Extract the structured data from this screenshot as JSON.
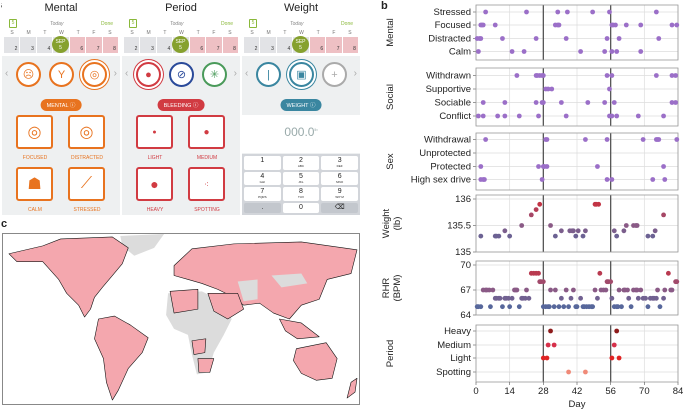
{
  "panel_labels": {
    "a": "a",
    "b": "b",
    "c": "c"
  },
  "calendar": {
    "icon_day": "5",
    "today": "Today",
    "done": "Done",
    "weekdays": [
      "S",
      "M",
      "T",
      "W",
      "T",
      "F",
      "S"
    ],
    "dates": [
      "2",
      "3",
      "4",
      "5",
      "6",
      "7",
      "8"
    ],
    "month": "SEP"
  },
  "phones": [
    {
      "title": "Mental",
      "accent": "#e8731f",
      "pill": "MENTAL",
      "icons": [
        "neutral-face",
        "person-arms-up",
        "target"
      ],
      "tiles": [
        {
          "label": "FOCUSED",
          "icon": "target-arrow"
        },
        {
          "label": "DISTRACTED",
          "icon": "target-missed"
        },
        {
          "label": "CALM",
          "icon": "sleeping-cat"
        },
        {
          "label": "STRESSED",
          "icon": "dynamite"
        }
      ]
    },
    {
      "title": "Period",
      "accent": "#d13b42",
      "pill": "BLEEDING",
      "icons": [
        "drop",
        "compass",
        "sparkle"
      ],
      "tiles": [
        {
          "label": "LIGHT",
          "icon": "small-drop"
        },
        {
          "label": "MEDIUM",
          "icon": "medium-drop"
        },
        {
          "label": "HEAVY",
          "icon": "large-drop"
        },
        {
          "label": "SPOTTING",
          "icon": "spots"
        }
      ]
    },
    {
      "title": "Weight",
      "accent": "#3a86a0",
      "pill": "WEIGHT",
      "icons": [
        "thermometer",
        "scale",
        "plus"
      ],
      "value": "000.0",
      "unit": "lb",
      "keys": [
        [
          "1",
          ""
        ],
        [
          "2",
          "ABC"
        ],
        [
          "3",
          "DEF"
        ],
        [
          "4",
          "GHI"
        ],
        [
          "5",
          "JKL"
        ],
        [
          "6",
          "MNO"
        ],
        [
          "7",
          "PQRS"
        ],
        [
          "8",
          "TUV"
        ],
        [
          "9",
          "WXYZ"
        ],
        [
          ".",
          ""
        ],
        [
          "0",
          ""
        ],
        [
          "⌫",
          ""
        ]
      ]
    }
  ],
  "chart_data": {
    "type": "scatter",
    "xlabel": "Day",
    "xlim": [
      0,
      84
    ],
    "xticks": [
      0,
      14,
      28,
      42,
      56,
      70,
      84
    ],
    "cycle_lines": [
      28,
      56
    ],
    "panels": [
      {
        "group": "Mental",
        "kind": "categorical",
        "categories": [
          "Stressed",
          "Focused",
          "Distracted",
          "Calm"
        ],
        "color": "#9b6fc8",
        "points": {
          "Stressed": [
            4,
            21,
            34,
            38,
            48.5,
            55.5,
            75
          ],
          "Focused": [
            2,
            2.5,
            3,
            8,
            33,
            34,
            34.5,
            56.5,
            57,
            58,
            62.5,
            68.5,
            81.5,
            83.5
          ],
          "Distracted": [
            0.5,
            1.5,
            2,
            11,
            25,
            37.5,
            54.5,
            59.5,
            76
          ],
          "Calm": [
            1,
            15,
            20,
            43.5,
            53.5,
            56.5,
            58.5,
            68.5
          ]
        }
      },
      {
        "group": "Social",
        "kind": "categorical",
        "categories": [
          "Withdrawn",
          "Supportive",
          "Sociable",
          "Conflict"
        ],
        "color": "#9b6fc8",
        "points": {
          "Withdrawn": [
            17,
            25,
            25.5,
            26.5,
            27.5,
            28,
            54.5,
            56.5,
            75,
            81.5,
            83
          ],
          "Supportive": [
            29,
            30,
            31.5,
            55.5
          ],
          "Sociable": [
            3,
            12,
            25,
            27.5,
            28,
            35.5,
            46.5,
            53.5,
            57.5,
            81.5,
            83
          ],
          "Conflict": [
            1,
            3,
            9,
            12,
            18,
            26,
            37.5,
            55.5,
            56.5,
            58.5,
            67.5,
            78
          ]
        }
      },
      {
        "group": "Sex",
        "kind": "categorical",
        "categories": [
          "Withdrawal",
          "Unprotected",
          "Protected",
          "High sex drive"
        ],
        "color": "#9b6fc8",
        "points": {
          "Withdrawal": [
            4,
            29,
            29.5,
            45.5,
            54.5,
            69.5,
            75,
            75.5,
            76,
            83.5
          ],
          "Unprotected": [],
          "Protected": [
            2,
            26,
            28,
            28.5,
            29.5,
            50.5,
            78
          ],
          "High sex drive": [
            2,
            3,
            3.5,
            27.5,
            54.5,
            56.5,
            73.5,
            78.5
          ]
        }
      },
      {
        "group": "Weight (lb)",
        "kind": "numeric",
        "ylim": [
          135,
          136
        ],
        "yticks": [
          135,
          135.5,
          136
        ],
        "points": [
          [
            2,
            135.3
          ],
          [
            8,
            135.3
          ],
          [
            8.5,
            135.3
          ],
          [
            9.5,
            135.3
          ],
          [
            12,
            135.4
          ],
          [
            14,
            135.3
          ],
          [
            19,
            135.5
          ],
          [
            23,
            135.7
          ],
          [
            25,
            135.8
          ],
          [
            26.5,
            135.9
          ],
          [
            31,
            135.5
          ],
          [
            33,
            135.3
          ],
          [
            35.5,
            135.4
          ],
          [
            39,
            135.4
          ],
          [
            40,
            135.4
          ],
          [
            40.5,
            135.4
          ],
          [
            41.5,
            135.3
          ],
          [
            42.5,
            135.4
          ],
          [
            44.5,
            135.3
          ],
          [
            45.5,
            135.4
          ],
          [
            49.5,
            135.9
          ],
          [
            50,
            135.9
          ],
          [
            51,
            135.9
          ],
          [
            57.5,
            135.4
          ],
          [
            58.5,
            135.3
          ],
          [
            61.5,
            135.4
          ],
          [
            62.5,
            135.5
          ],
          [
            65.5,
            135.5
          ],
          [
            66.5,
            135.5
          ],
          [
            67,
            135.5
          ],
          [
            71.5,
            135.3
          ],
          [
            73.5,
            135.3
          ],
          [
            74.5,
            135.4
          ],
          [
            78,
            135.7
          ]
        ]
      },
      {
        "group": "RHR (BPM)",
        "kind": "numeric",
        "ylim": [
          64,
          70
        ],
        "yticks": [
          64,
          67,
          70
        ],
        "points": [
          [
            23,
            69
          ],
          [
            24,
            69
          ],
          [
            25,
            69
          ],
          [
            26,
            69
          ],
          [
            51.5,
            69
          ],
          [
            80,
            69
          ],
          [
            26.5,
            68
          ],
          [
            27,
            68
          ],
          [
            28,
            68
          ],
          [
            54.5,
            68
          ],
          [
            55,
            68
          ],
          [
            56,
            68
          ],
          [
            83,
            68
          ],
          [
            83.5,
            68
          ],
          [
            3,
            67
          ],
          [
            4,
            67
          ],
          [
            4.5,
            67
          ],
          [
            5.5,
            67
          ],
          [
            7,
            67
          ],
          [
            16,
            67
          ],
          [
            16.5,
            67
          ],
          [
            17,
            67
          ],
          [
            21,
            67
          ],
          [
            31,
            67
          ],
          [
            33,
            67
          ],
          [
            37.5,
            67
          ],
          [
            40.5,
            67
          ],
          [
            49.5,
            67
          ],
          [
            52,
            67
          ],
          [
            53,
            67
          ],
          [
            54,
            67
          ],
          [
            59.5,
            67
          ],
          [
            61.5,
            67
          ],
          [
            62,
            67
          ],
          [
            63,
            67
          ],
          [
            65.5,
            67
          ],
          [
            66.5,
            67
          ],
          [
            67,
            67
          ],
          [
            68.5,
            67
          ],
          [
            75.5,
            67
          ],
          [
            78.5,
            67
          ],
          [
            81,
            67
          ],
          [
            81.5,
            67
          ],
          [
            8,
            66
          ],
          [
            8.5,
            66
          ],
          [
            9.5,
            66
          ],
          [
            10,
            66
          ],
          [
            12,
            66
          ],
          [
            12.5,
            66
          ],
          [
            13.5,
            66
          ],
          [
            15,
            66
          ],
          [
            19,
            66
          ],
          [
            19.5,
            66
          ],
          [
            20.5,
            66
          ],
          [
            22,
            66
          ],
          [
            35.5,
            66
          ],
          [
            39.5,
            66
          ],
          [
            43.5,
            66
          ],
          [
            50.5,
            66
          ],
          [
            56.5,
            66
          ],
          [
            63.5,
            66
          ],
          [
            67.5,
            66
          ],
          [
            69.5,
            66
          ],
          [
            70.5,
            66
          ],
          [
            72.5,
            66
          ],
          [
            73.5,
            66
          ],
          [
            74,
            66
          ],
          [
            75,
            66
          ],
          [
            78,
            66
          ],
          [
            0.5,
            65
          ],
          [
            1,
            65
          ],
          [
            2,
            65
          ],
          [
            6,
            65
          ],
          [
            11,
            65
          ],
          [
            14,
            65
          ],
          [
            18,
            65
          ],
          [
            28,
            65
          ],
          [
            29,
            65
          ],
          [
            30,
            65
          ],
          [
            30.5,
            65
          ],
          [
            32.5,
            65
          ],
          [
            34.5,
            65
          ],
          [
            36.5,
            65
          ],
          [
            38.5,
            65
          ],
          [
            41.5,
            65
          ],
          [
            42,
            65
          ],
          [
            44.5,
            65
          ],
          [
            45,
            65
          ],
          [
            46,
            65
          ],
          [
            47,
            65
          ],
          [
            48,
            65
          ],
          [
            48.5,
            65
          ],
          [
            57.5,
            65
          ],
          [
            58.5,
            65
          ],
          [
            59,
            65
          ],
          [
            60.5,
            65
          ],
          [
            64.5,
            65
          ],
          [
            71.5,
            65
          ],
          [
            76.5,
            65
          ]
        ]
      },
      {
        "group": "Period",
        "kind": "categorical",
        "categories": [
          "Heavy",
          "Medium",
          "Light",
          "Spotting"
        ],
        "colors": {
          "Heavy": "#8e1b1b",
          "Medium": "#d6304a",
          "Light": "#e02424",
          "Spotting": "#f08a78"
        },
        "points": {
          "Heavy": [
            31,
            58.5
          ],
          "Medium": [
            30,
            32.5,
            57.5
          ],
          "Light": [
            28,
            29.5,
            56.5,
            59.5
          ],
          "Spotting": [
            38.5,
            45.5
          ]
        }
      }
    ]
  },
  "map": {
    "highlight_color": "#f4a7ae",
    "other_color": "#dcdcdc"
  }
}
